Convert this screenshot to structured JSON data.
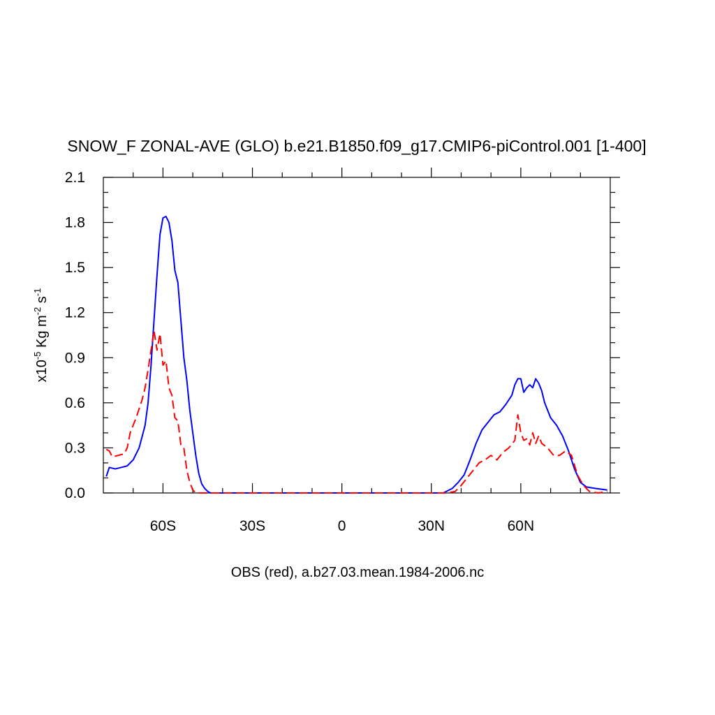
{
  "chart_data": {
    "type": "line",
    "title": "SNOW_F ZONAL-AVE (GLO) b.e21.B1850.f09_g17.CMIP6-piControl.001 [1-400]",
    "x_label": "OBS (red), a.b27.03.mean.1984-2006.nc",
    "y_label": [
      "x10",
      "-5",
      " Kg m",
      "-2",
      " s",
      "-1"
    ],
    "xlim": [
      -80,
      90
    ],
    "ylim": [
      0,
      2.1
    ],
    "xticks": [
      {
        "value": -60,
        "label": "60S"
      },
      {
        "value": -30,
        "label": "30S"
      },
      {
        "value": 0,
        "label": "0"
      },
      {
        "value": 30,
        "label": "30N"
      },
      {
        "value": 60,
        "label": "60N"
      }
    ],
    "xminorticks": [
      -70,
      -50,
      -40,
      -20,
      -10,
      10,
      20,
      40,
      50,
      70,
      80
    ],
    "yticks": [
      {
        "value": 0,
        "label": "0.0"
      },
      0.3,
      0.6,
      0.9,
      1.2,
      1.5,
      1.8,
      2.1
    ],
    "yminorticks": [
      0.1,
      0.2,
      0.4,
      0.5,
      0.7,
      0.8,
      1.0,
      1.1,
      1.3,
      1.4,
      1.6,
      1.7,
      1.9,
      2.0
    ],
    "series": [
      {
        "color": "#0000ff",
        "dash": false,
        "x": [
          -79,
          -78,
          -76,
          -74,
          -72,
          -70,
          -68,
          -66,
          -65,
          -64,
          -63,
          -62,
          -61,
          -60,
          -59,
          -58,
          -57,
          -56,
          -55,
          -54,
          -53,
          -52,
          -51,
          -50,
          -49,
          -48,
          -47,
          -46,
          -45,
          -44,
          -20,
          0,
          20,
          34,
          35,
          37,
          39,
          41,
          43,
          45,
          47,
          49,
          51,
          53,
          55,
          57,
          58,
          59,
          60,
          61,
          62,
          63,
          64,
          65,
          66,
          67,
          68,
          70,
          72,
          74,
          76,
          78,
          80,
          82,
          85,
          89
        ],
        "values": [
          0.11,
          0.17,
          0.16,
          0.17,
          0.18,
          0.22,
          0.3,
          0.45,
          0.6,
          0.85,
          1.15,
          1.45,
          1.72,
          1.83,
          1.84,
          1.8,
          1.68,
          1.48,
          1.4,
          1.15,
          0.9,
          0.75,
          0.55,
          0.4,
          0.25,
          0.13,
          0.06,
          0.03,
          0.01,
          0,
          0,
          0,
          0,
          0,
          0.01,
          0.03,
          0.07,
          0.12,
          0.22,
          0.33,
          0.42,
          0.47,
          0.52,
          0.54,
          0.59,
          0.65,
          0.72,
          0.76,
          0.76,
          0.67,
          0.7,
          0.72,
          0.7,
          0.76,
          0.73,
          0.68,
          0.6,
          0.5,
          0.45,
          0.38,
          0.28,
          0.16,
          0.07,
          0.04,
          0.03,
          0.02
        ]
      },
      {
        "color": "#ff0000",
        "dash": true,
        "x": [
          -79,
          -78,
          -77,
          -75,
          -73,
          -72,
          -71,
          -69,
          -67,
          -66,
          -65,
          -64,
          -63,
          -62,
          -61,
          -60,
          -59,
          -58,
          -57,
          -56,
          -55,
          -54,
          -53,
          -52,
          -51,
          -50,
          -49,
          -20,
          0,
          20,
          35,
          38,
          40,
          42,
          44,
          46,
          48,
          50,
          52,
          54,
          56,
          58,
          59,
          60,
          61,
          62,
          63,
          64,
          65,
          66,
          67,
          69,
          71,
          73,
          75,
          77,
          79,
          81,
          83,
          86,
          89
        ],
        "values": [
          0.29,
          0.28,
          0.24,
          0.25,
          0.26,
          0.3,
          0.4,
          0.5,
          0.62,
          0.7,
          0.82,
          0.95,
          1.08,
          0.95,
          1.06,
          0.85,
          0.88,
          0.7,
          0.65,
          0.5,
          0.48,
          0.32,
          0.3,
          0.15,
          0.07,
          0.02,
          0,
          0,
          0,
          0,
          0,
          0.01,
          0.05,
          0.1,
          0.15,
          0.2,
          0.22,
          0.25,
          0.22,
          0.27,
          0.3,
          0.35,
          0.52,
          0.4,
          0.35,
          0.36,
          0.32,
          0.4,
          0.33,
          0.38,
          0.33,
          0.3,
          0.25,
          0.25,
          0.28,
          0.25,
          0.12,
          0.05,
          0.01,
          0,
          0.01
        ]
      }
    ]
  }
}
